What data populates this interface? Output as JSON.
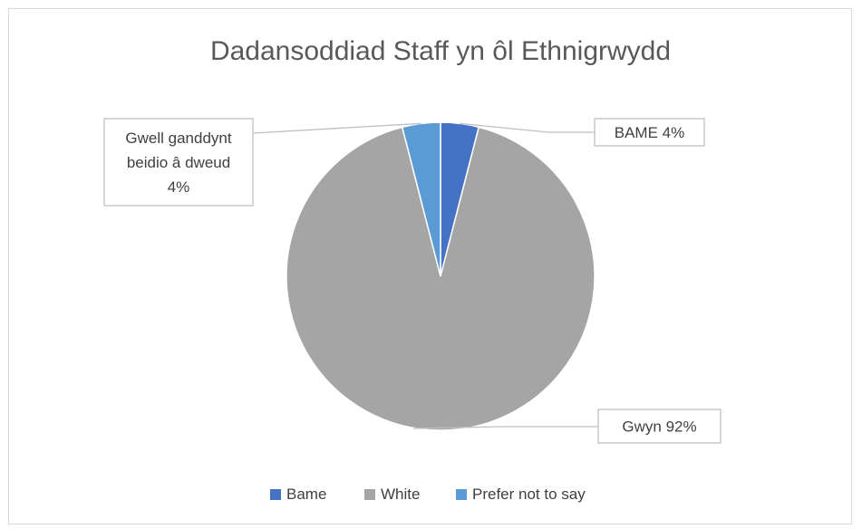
{
  "chart_data": {
    "type": "pie",
    "title": "Dadansoddiad Staff yn ôl Ethnigrwydd",
    "categories": [
      "Bame",
      "White",
      "Prefer not to say"
    ],
    "values": [
      4,
      92,
      4
    ],
    "unit": "%",
    "colors": [
      "#4472c4",
      "#a5a5a5",
      "#5b9bd5"
    ],
    "data_labels": [
      {
        "lines": [
          "BAME 4%"
        ]
      },
      {
        "lines": [
          "Gwyn  92%"
        ]
      },
      {
        "lines": [
          "Gwell ganddynt",
          "beidio â dweud",
          "4%"
        ]
      }
    ],
    "legend": {
      "position": "bottom",
      "entries": [
        "Bame",
        "White",
        "Prefer not to say"
      ]
    }
  }
}
